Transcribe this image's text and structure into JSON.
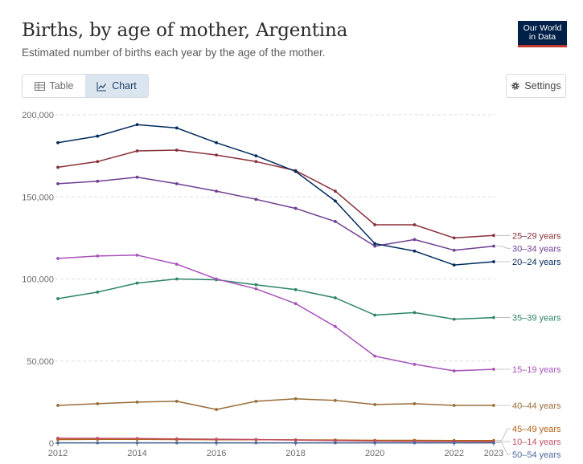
{
  "header": {
    "title": "Births, by age of mother, Argentina",
    "subtitle": "Estimated number of births each year by the age of the mother.",
    "logo_line1": "Our World",
    "logo_line2": "in Data"
  },
  "controls": {
    "tab_table": "Table",
    "tab_chart": "Chart",
    "active_tab": "Chart",
    "settings_label": "Settings"
  },
  "icons": {
    "table": "table-icon",
    "chart": "line-chart-icon",
    "settings": "gear-icon"
  },
  "chart_data": {
    "type": "line",
    "title": "Births, by age of mother, Argentina",
    "subtitle": "Estimated number of births each year by the age of the mother.",
    "xlabel": "",
    "ylabel": "",
    "xlim": [
      2012,
      2023
    ],
    "ylim": [
      0,
      200000
    ],
    "x_ticks": [
      "2012",
      "2014",
      "2016",
      "2018",
      "2020",
      "2022",
      "2023"
    ],
    "y_ticks": [
      "0",
      "50,000",
      "100,000",
      "150,000",
      "200,000"
    ],
    "grid": "horizontal-dashed",
    "legend": "inline-right",
    "x": [
      2012,
      2013,
      2014,
      2015,
      2016,
      2017,
      2018,
      2019,
      2020,
      2021,
      2022,
      2023
    ],
    "series": [
      {
        "name": "25–29 years",
        "color": "#883039",
        "values": [
          168000,
          171500,
          178000,
          178500,
          175500,
          171500,
          166000,
          153500,
          133000,
          133000,
          125000,
          126500
        ]
      },
      {
        "name": "30–34 years",
        "color": "#6d3e91",
        "values": [
          158000,
          159500,
          162000,
          158000,
          153500,
          148500,
          143000,
          135000,
          120000,
          124000,
          117500,
          120000
        ]
      },
      {
        "name": "20–24 years",
        "color": "#00295b",
        "values": [
          183000,
          187000,
          194000,
          192000,
          183000,
          175000,
          165500,
          147500,
          121500,
          117000,
          108500,
          110500
        ]
      },
      {
        "name": "35–39 years",
        "color": "#2c8465",
        "values": [
          88000,
          92000,
          97500,
          100000,
          99500,
          96500,
          93500,
          88500,
          78000,
          79500,
          75500,
          76500
        ]
      },
      {
        "name": "15–19 years",
        "color": "#a652ba",
        "values": [
          112500,
          114000,
          114500,
          109000,
          100000,
          94000,
          85000,
          71000,
          53000,
          48000,
          44000,
          45000
        ]
      },
      {
        "name": "40–44 years",
        "color": "#996d39",
        "values": [
          23000,
          24000,
          25000,
          25500,
          20500,
          25500,
          27000,
          26000,
          23500,
          24000,
          23000,
          23000
        ]
      },
      {
        "name": "45–49 years",
        "color": "#b16214",
        "values": [
          2200,
          2300,
          2300,
          2200,
          2100,
          2100,
          2000,
          1900,
          1700,
          1700,
          1600,
          1600
        ]
      },
      {
        "name": "10–14 years",
        "color": "#c15065",
        "values": [
          3000,
          2900,
          2800,
          2600,
          2400,
          2200,
          1900,
          1500,
          1200,
          1100,
          1000,
          900
        ]
      },
      {
        "name": "50–54 years",
        "color": "#4c6a9c",
        "values": [
          200,
          200,
          200,
          200,
          200,
          200,
          200,
          200,
          200,
          200,
          200,
          200
        ]
      }
    ]
  }
}
